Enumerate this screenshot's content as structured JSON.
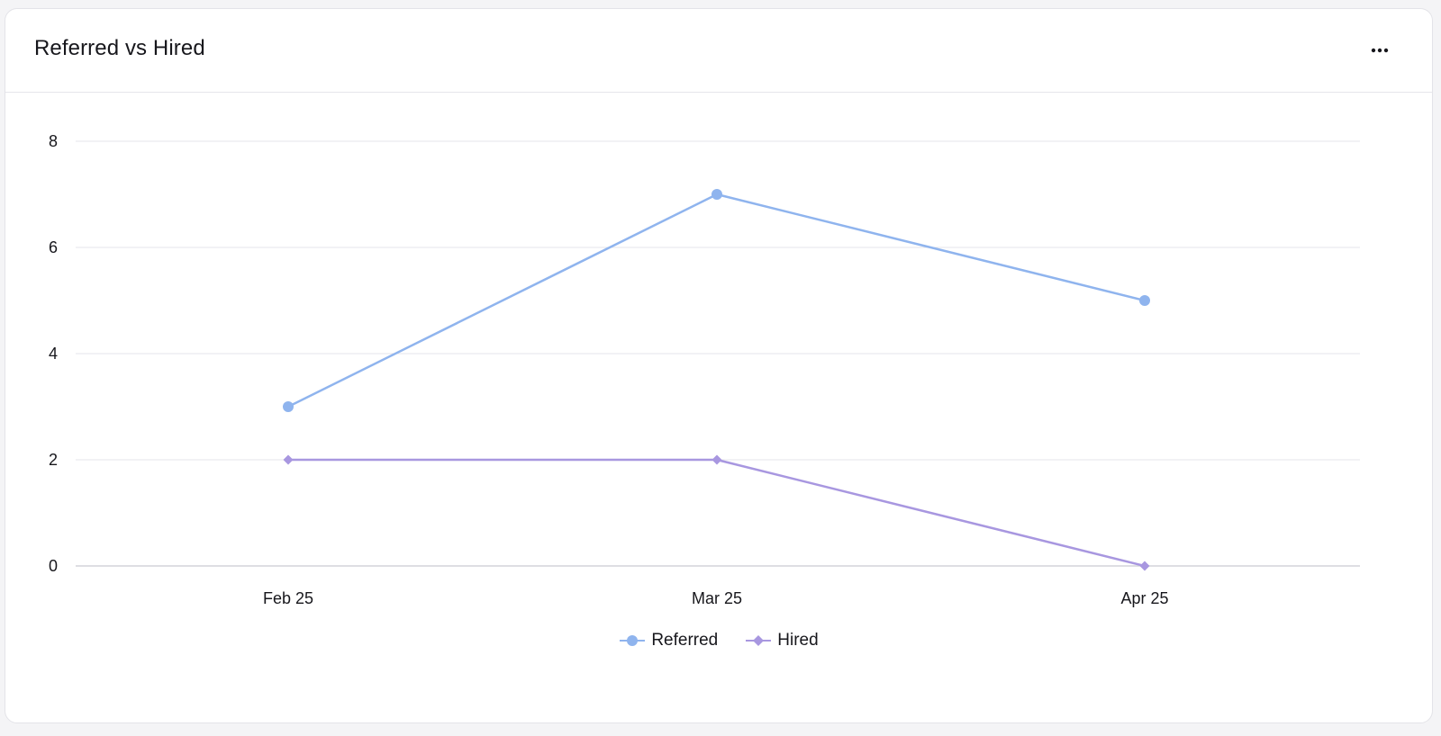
{
  "header": {
    "title": "Referred vs Hired",
    "menu_icon": "more-horizontal-icon"
  },
  "colors": {
    "referred": "#8fb4ee",
    "hired": "#a897e0",
    "grid": "#e6e6eb",
    "axis": "#d4d4da"
  },
  "chart_data": {
    "type": "line",
    "title": "Referred vs Hired",
    "xlabel": "",
    "ylabel": "",
    "categories": [
      "Feb 25",
      "Mar 25",
      "Apr 25"
    ],
    "ylim": [
      0,
      8
    ],
    "yticks": [
      0,
      2,
      4,
      6,
      8
    ],
    "grid": true,
    "legend_position": "bottom-center",
    "series": [
      {
        "name": "Referred",
        "values": [
          3,
          7,
          5
        ],
        "marker": "circle",
        "color": "#8fb4ee"
      },
      {
        "name": "Hired",
        "values": [
          2,
          2,
          0
        ],
        "marker": "diamond",
        "color": "#a897e0"
      }
    ]
  }
}
